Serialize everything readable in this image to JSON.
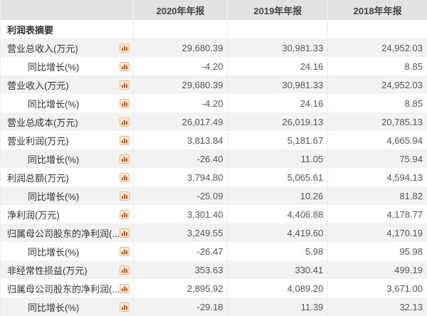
{
  "table": {
    "section_title": "利润表摘要",
    "columns": [
      "2020年年报",
      "2019年年报",
      "2018年年报"
    ],
    "rows": [
      {
        "label": "营业总收入(万元)",
        "indent": false,
        "values": [
          "29,680.39",
          "30,981.33",
          "24,952.03"
        ]
      },
      {
        "label": "同比增长(%)",
        "indent": true,
        "values": [
          "-4.20",
          "24.16",
          "8.85"
        ]
      },
      {
        "label": "营业收入(万元)",
        "indent": false,
        "values": [
          "29,680.39",
          "30,981.33",
          "24,952.03"
        ]
      },
      {
        "label": "同比增长(%)",
        "indent": true,
        "values": [
          "-4.20",
          "24.16",
          "8.85"
        ]
      },
      {
        "label": "营业总成本(万元)",
        "indent": false,
        "values": [
          "26,017.49",
          "26,019.13",
          "20,785.13"
        ]
      },
      {
        "label": "营业利润(万元)",
        "indent": false,
        "values": [
          "3,813.84",
          "5,181.67",
          "4,665.94"
        ]
      },
      {
        "label": "同比增长(%)",
        "indent": true,
        "values": [
          "-26.40",
          "11.05",
          "75.94"
        ]
      },
      {
        "label": "利润总额(万元)",
        "indent": false,
        "values": [
          "3,794.80",
          "5,065.61",
          "4,594.13"
        ]
      },
      {
        "label": "同比增长(%)",
        "indent": true,
        "values": [
          "-25.09",
          "10.26",
          "81.82"
        ]
      },
      {
        "label": "净利润(万元)",
        "indent": false,
        "values": [
          "3,301.40",
          "4,406.88",
          "4,178.77"
        ]
      },
      {
        "label": "归属母公司股东的净利润(...",
        "indent": false,
        "values": [
          "3,249.55",
          "4,419.60",
          "4,170.19"
        ]
      },
      {
        "label": "同比增长(%)",
        "indent": true,
        "values": [
          "-26.47",
          "5.98",
          "95.98"
        ]
      },
      {
        "label": "非经常性损益(万元)",
        "indent": false,
        "values": [
          "353.63",
          "330.41",
          "499.19"
        ]
      },
      {
        "label": "归属母公司股东的净利润(...",
        "indent": false,
        "values": [
          "2,895.92",
          "4,089.20",
          "3,671.00"
        ]
      },
      {
        "label": "同比增长(%)",
        "indent": true,
        "values": [
          "-29.18",
          "11.39",
          "32.13"
        ]
      }
    ],
    "row_icon": "bar-chart-icon"
  },
  "colors": {
    "header_bg": "#e2e2e2",
    "stripe_bg": "#f2f2f2",
    "label_text": "#333333",
    "value_text": "#555555",
    "icon_bar": "#d9541c",
    "icon_bg": "#fcecd3",
    "icon_border": "#eeb87e"
  }
}
